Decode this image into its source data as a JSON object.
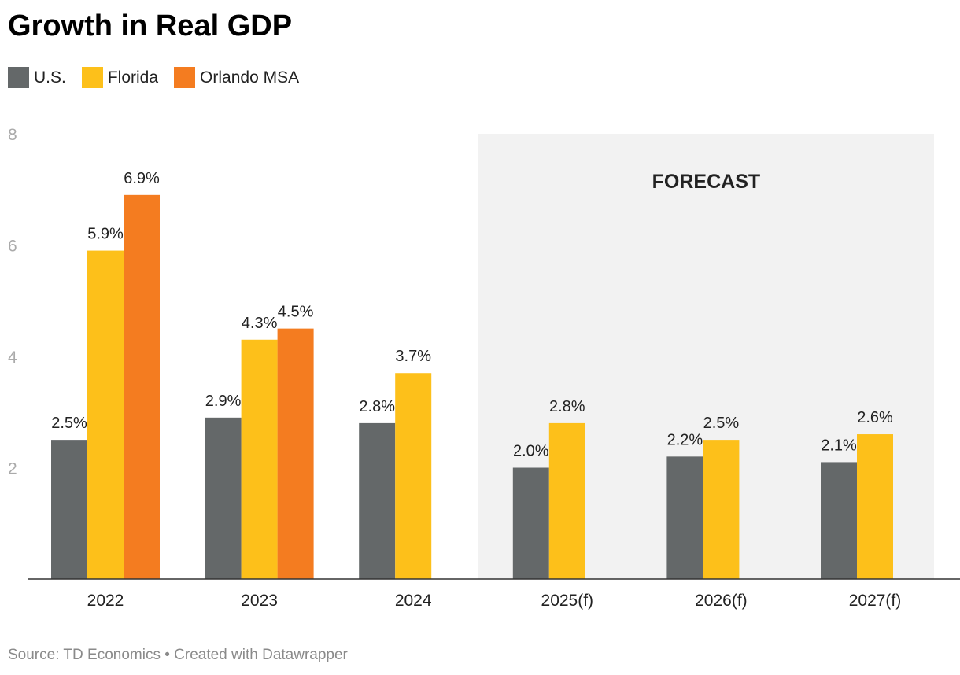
{
  "chart_data": {
    "type": "bar",
    "title": "Growth in Real GDP",
    "categories": [
      "2022",
      "2023",
      "2024",
      "2025(f)",
      "2026(f)",
      "2027(f)"
    ],
    "series": [
      {
        "name": "U.S.",
        "color": "#646869",
        "values": [
          2.5,
          2.9,
          2.8,
          2.0,
          2.2,
          2.1
        ]
      },
      {
        "name": "Florida",
        "color": "#fdc01a",
        "values": [
          5.9,
          4.3,
          3.7,
          2.8,
          2.5,
          2.6
        ]
      },
      {
        "name": "Orlando MSA",
        "color": "#f47c20",
        "values": [
          6.9,
          4.5,
          null,
          null,
          null,
          null
        ]
      }
    ],
    "value_suffix": "%",
    "ylim": [
      0,
      8
    ],
    "yticks": [
      2,
      4,
      6,
      8
    ],
    "xlabel": "",
    "ylabel": "",
    "legend": "top-left",
    "annotation": {
      "label": "FORECAST",
      "from_category": "2025(f)",
      "to_category": "2027(f)",
      "color": "#f2f2f2"
    },
    "source": "Source: TD Economics • Created with Datawrapper"
  }
}
